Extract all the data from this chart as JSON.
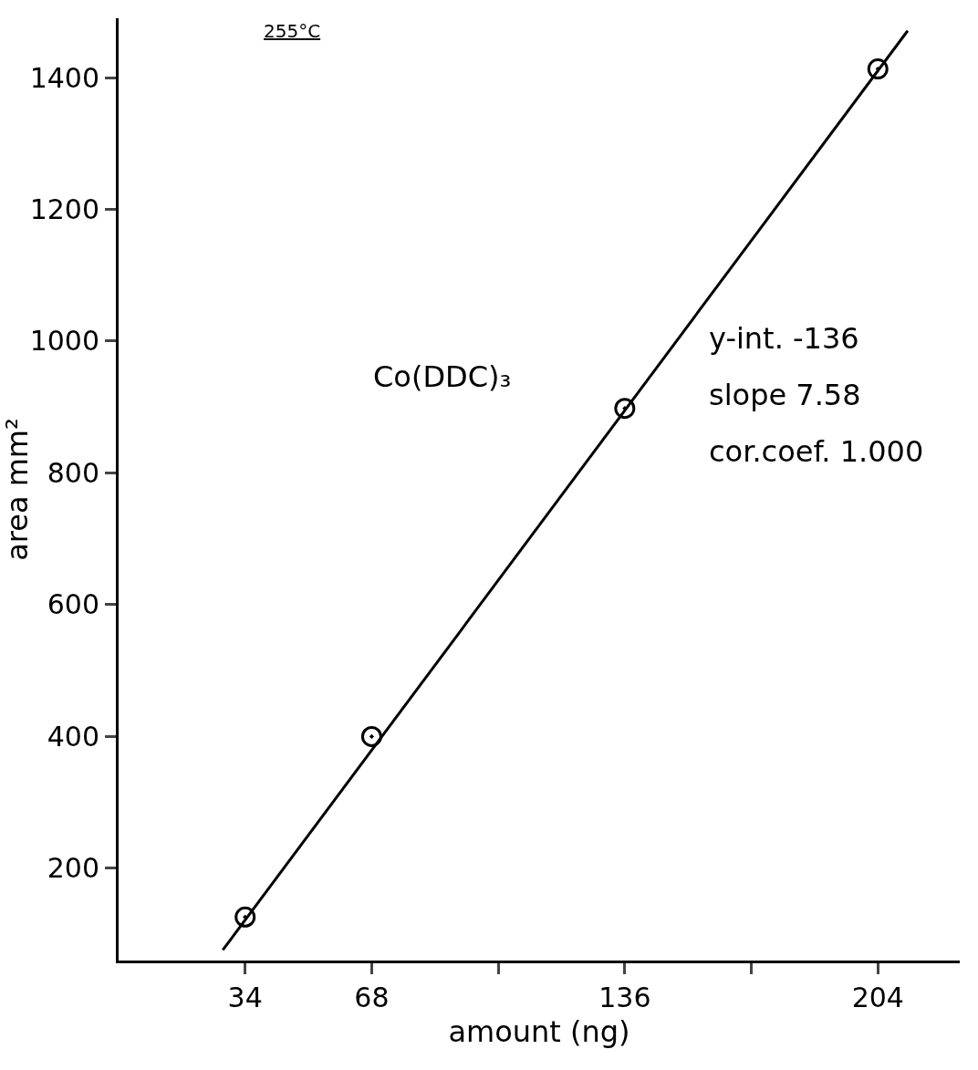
{
  "chart_data": {
    "type": "scatter",
    "xlabel": "amount (ng)",
    "ylabel": "area mm²",
    "xlim": [
      0,
      226
    ],
    "ylim": [
      60,
      1490
    ],
    "xticks": [
      34,
      68,
      {
        "value": 102,
        "label": null
      },
      136,
      {
        "value": 170,
        "label": null
      },
      204
    ],
    "yticks": [
      200,
      400,
      600,
      800,
      1000,
      1200,
      1400
    ],
    "grid": false,
    "series": [
      {
        "color": "#000000",
        "marker": "circle",
        "x": [
          34,
          68,
          136,
          204
        ],
        "values": [
          126,
          400,
          898,
          1413
        ]
      },
      {
        "type": "line",
        "color": "#000000",
        "x": [
          28,
          212
        ],
        "values": [
          76,
          1471
        ]
      }
    ],
    "annotations": [
      "255°C",
      "Co(DDC)₃",
      "y-int. -136",
      "slope 7.58",
      "cor.coef. 1.000"
    ]
  }
}
